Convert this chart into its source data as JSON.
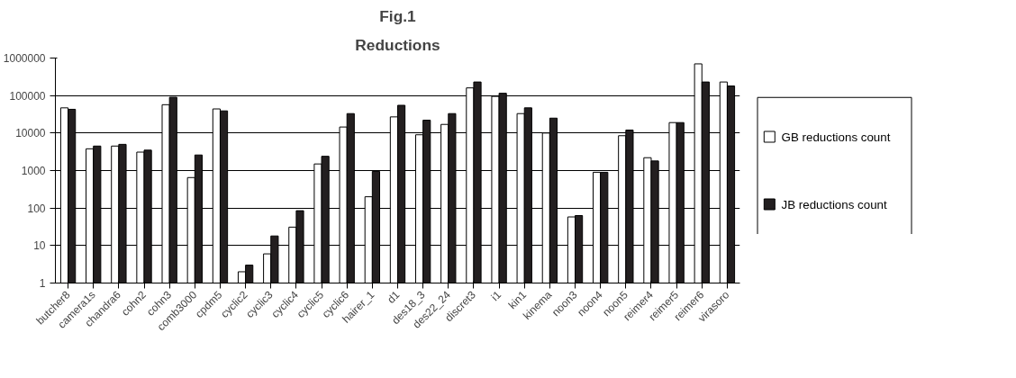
{
  "chart_data": {
    "type": "bar",
    "title": "Fig.1",
    "subtitle": "Reductions",
    "categories": [
      "butcher8",
      "camera1s",
      "chandra6",
      "cohn2",
      "cohn3",
      "comb3000",
      "cpdm5",
      "cyclic2",
      "cyclic3",
      "cyclic4",
      "cyclic5",
      "cyclic6",
      "hairer_1",
      "d1",
      "des18_3",
      "des22_24",
      "discret3",
      "i1",
      "kin1",
      "kinema",
      "noon3",
      "noon4",
      "noon5",
      "reimer4",
      "reimer5",
      "reimer6",
      "virasoro"
    ],
    "series": [
      {
        "name": "GB reductions count",
        "color": "#ffffff",
        "values": [
          47000,
          3800,
          4500,
          3100,
          57000,
          650,
          44000,
          2,
          6,
          31,
          1500,
          14500,
          200,
          27000,
          9000,
          17000,
          160000,
          95000,
          33000,
          10000,
          58,
          900,
          8500,
          2200,
          19000,
          700000,
          230000
        ]
      },
      {
        "name": "JB reductions count",
        "color": "#231f20",
        "values": [
          43000,
          4500,
          5000,
          3500,
          90000,
          2600,
          39000,
          3,
          18,
          85,
          2400,
          33000,
          950,
          55000,
          22000,
          33000,
          230000,
          115000,
          47000,
          25000,
          63,
          900,
          12000,
          1800,
          19000,
          230000,
          180000
        ]
      }
    ],
    "log": true,
    "ylim": [
      1,
      1000000
    ],
    "yticks": [
      1,
      10,
      100,
      1000,
      10000,
      100000,
      1000000
    ],
    "grid": "y",
    "legend": "right"
  }
}
